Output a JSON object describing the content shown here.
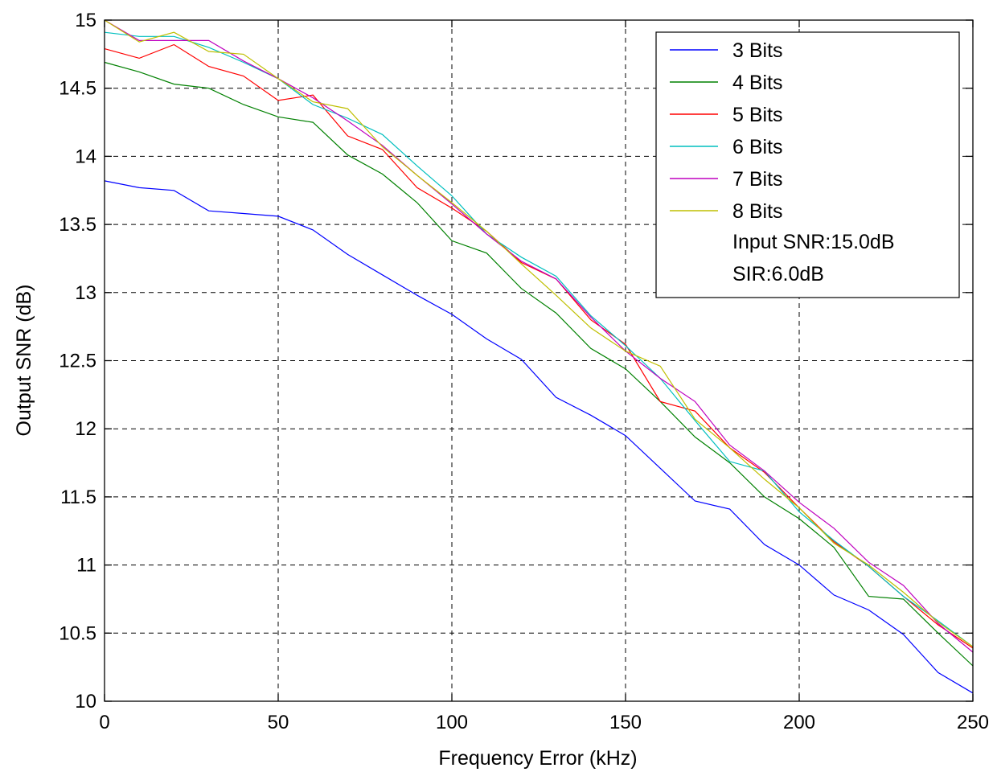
{
  "chart_data": {
    "type": "line",
    "title": "",
    "xlabel": "Frequency Error (kHz)",
    "ylabel": "Output SNR (dB)",
    "xlim": [
      0,
      250
    ],
    "ylim": [
      10,
      15
    ],
    "xticks": [
      0,
      50,
      100,
      150,
      200,
      250
    ],
    "yticks": [
      10,
      10.5,
      11,
      11.5,
      12,
      12.5,
      13,
      13.5,
      14,
      14.5,
      15
    ],
    "grid": true,
    "legend_position": "top-right",
    "x": [
      0,
      10,
      20,
      30,
      40,
      50,
      60,
      70,
      80,
      90,
      100,
      110,
      120,
      130,
      140,
      150,
      160,
      170,
      180,
      190,
      200,
      210,
      220,
      230,
      240,
      250
    ],
    "series": [
      {
        "name": "3 Bits",
        "color": "#0000ff",
        "values": [
          13.82,
          13.77,
          13.75,
          13.6,
          13.58,
          13.56,
          13.46,
          13.28,
          13.13,
          12.98,
          12.84,
          12.66,
          12.51,
          12.23,
          12.1,
          11.95,
          11.71,
          11.47,
          11.41,
          11.15,
          11.0,
          10.78,
          10.67,
          10.49,
          10.21,
          10.06
        ]
      },
      {
        "name": "4 Bits",
        "color": "#008000",
        "values": [
          14.69,
          14.62,
          14.53,
          14.5,
          14.38,
          14.29,
          14.25,
          14.01,
          13.87,
          13.66,
          13.38,
          13.29,
          13.03,
          12.85,
          12.59,
          12.44,
          12.2,
          11.94,
          11.75,
          11.5,
          11.34,
          11.13,
          10.77,
          10.75,
          10.5,
          10.26
        ]
      },
      {
        "name": "5 Bits",
        "color": "#ff0000",
        "values": [
          14.79,
          14.72,
          14.82,
          14.66,
          14.59,
          14.41,
          14.45,
          14.15,
          14.05,
          13.77,
          13.62,
          13.45,
          13.22,
          13.1,
          12.8,
          12.62,
          12.2,
          12.13,
          11.86,
          11.68,
          11.42,
          11.17,
          10.99,
          10.77,
          10.56,
          10.39
        ]
      },
      {
        "name": "6 Bits",
        "color": "#00bfbf",
        "values": [
          14.91,
          14.88,
          14.88,
          14.8,
          14.69,
          14.57,
          14.38,
          14.28,
          14.16,
          13.93,
          13.71,
          13.43,
          13.26,
          13.12,
          12.83,
          12.61,
          12.37,
          12.06,
          11.76,
          11.69,
          11.39,
          11.18,
          10.99,
          10.77,
          10.59,
          10.4
        ]
      },
      {
        "name": "7 Bits",
        "color": "#bf00bf",
        "values": [
          15.0,
          14.85,
          14.85,
          14.85,
          14.7,
          14.57,
          14.43,
          14.26,
          14.08,
          13.86,
          13.65,
          13.43,
          13.23,
          13.1,
          12.82,
          12.57,
          12.37,
          12.2,
          11.88,
          11.69,
          11.46,
          11.27,
          11.02,
          10.85,
          10.57,
          10.36
        ]
      },
      {
        "name": "8 Bits",
        "color": "#bfbf00",
        "values": [
          15.0,
          14.84,
          14.91,
          14.77,
          14.75,
          14.57,
          14.4,
          14.35,
          14.07,
          13.86,
          13.66,
          13.45,
          13.21,
          12.98,
          12.74,
          12.57,
          12.46,
          12.07,
          11.86,
          11.63,
          11.42,
          11.16,
          11.0,
          10.8,
          10.58,
          10.4
        ]
      }
    ],
    "annotations": [
      "Input SNR:15.0dB",
      "SIR:6.0dB"
    ]
  }
}
